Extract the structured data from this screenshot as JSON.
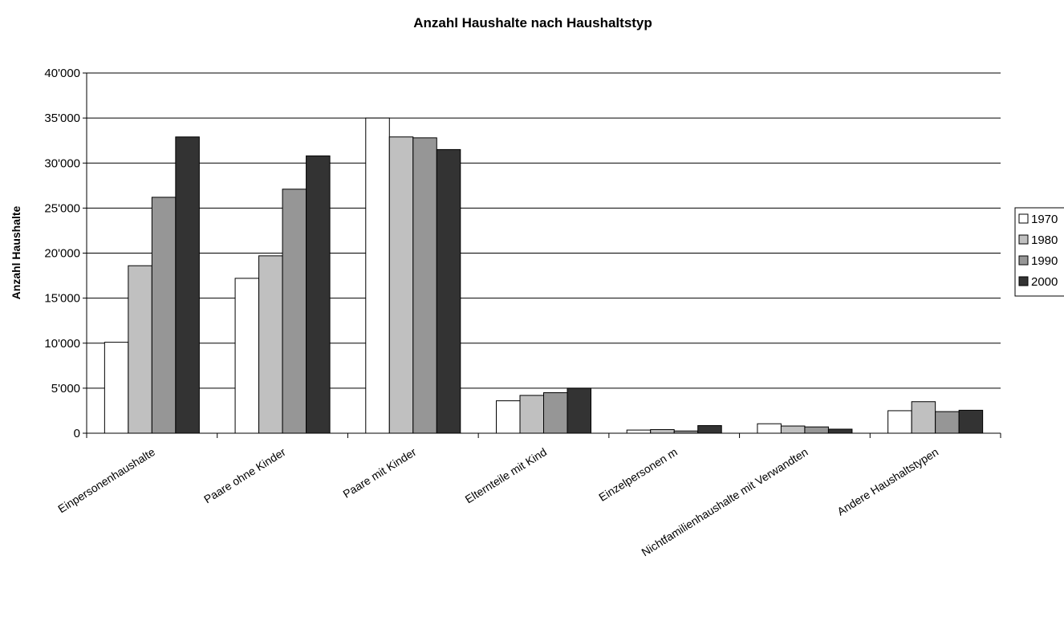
{
  "chart_data": {
    "type": "bar",
    "title": "Anzahl Haushalte nach Haushaltstyp",
    "xlabel": "",
    "ylabel": "Anzahl Haushalte",
    "ylim": [
      0,
      40000
    ],
    "yticks": [
      0,
      5000,
      10000,
      15000,
      20000,
      25000,
      30000,
      35000,
      40000
    ],
    "ytick_labels": [
      "0",
      "5'000",
      "10'000",
      "15'000",
      "20'000",
      "25'000",
      "30'000",
      "35'000",
      "40'000"
    ],
    "grid": "horizontal",
    "legend_position": "right",
    "categories": [
      "Einpersonenhaushalte",
      "Paare ohne Kinder",
      "Paare mit Kinder",
      "Elternteile mit Kind",
      "Einzelpersonen m",
      "Nichtfamilienhaushalte mit Verwandten",
      "Andere Haushaltstypen"
    ],
    "series": [
      {
        "name": "1970",
        "color": "#ffffff",
        "values": [
          10100,
          17200,
          35000,
          3600,
          350,
          1050,
          2500
        ]
      },
      {
        "name": "1980",
        "color": "#c0c0c0",
        "values": [
          18600,
          19700,
          32900,
          4200,
          400,
          800,
          3500
        ]
      },
      {
        "name": "1990",
        "color": "#969696",
        "values": [
          26200,
          27100,
          32800,
          4500,
          250,
          700,
          2400
        ]
      },
      {
        "name": "2000",
        "color": "#333333",
        "values": [
          32900,
          30800,
          31500,
          5000,
          850,
          450,
          2550
        ]
      }
    ]
  }
}
